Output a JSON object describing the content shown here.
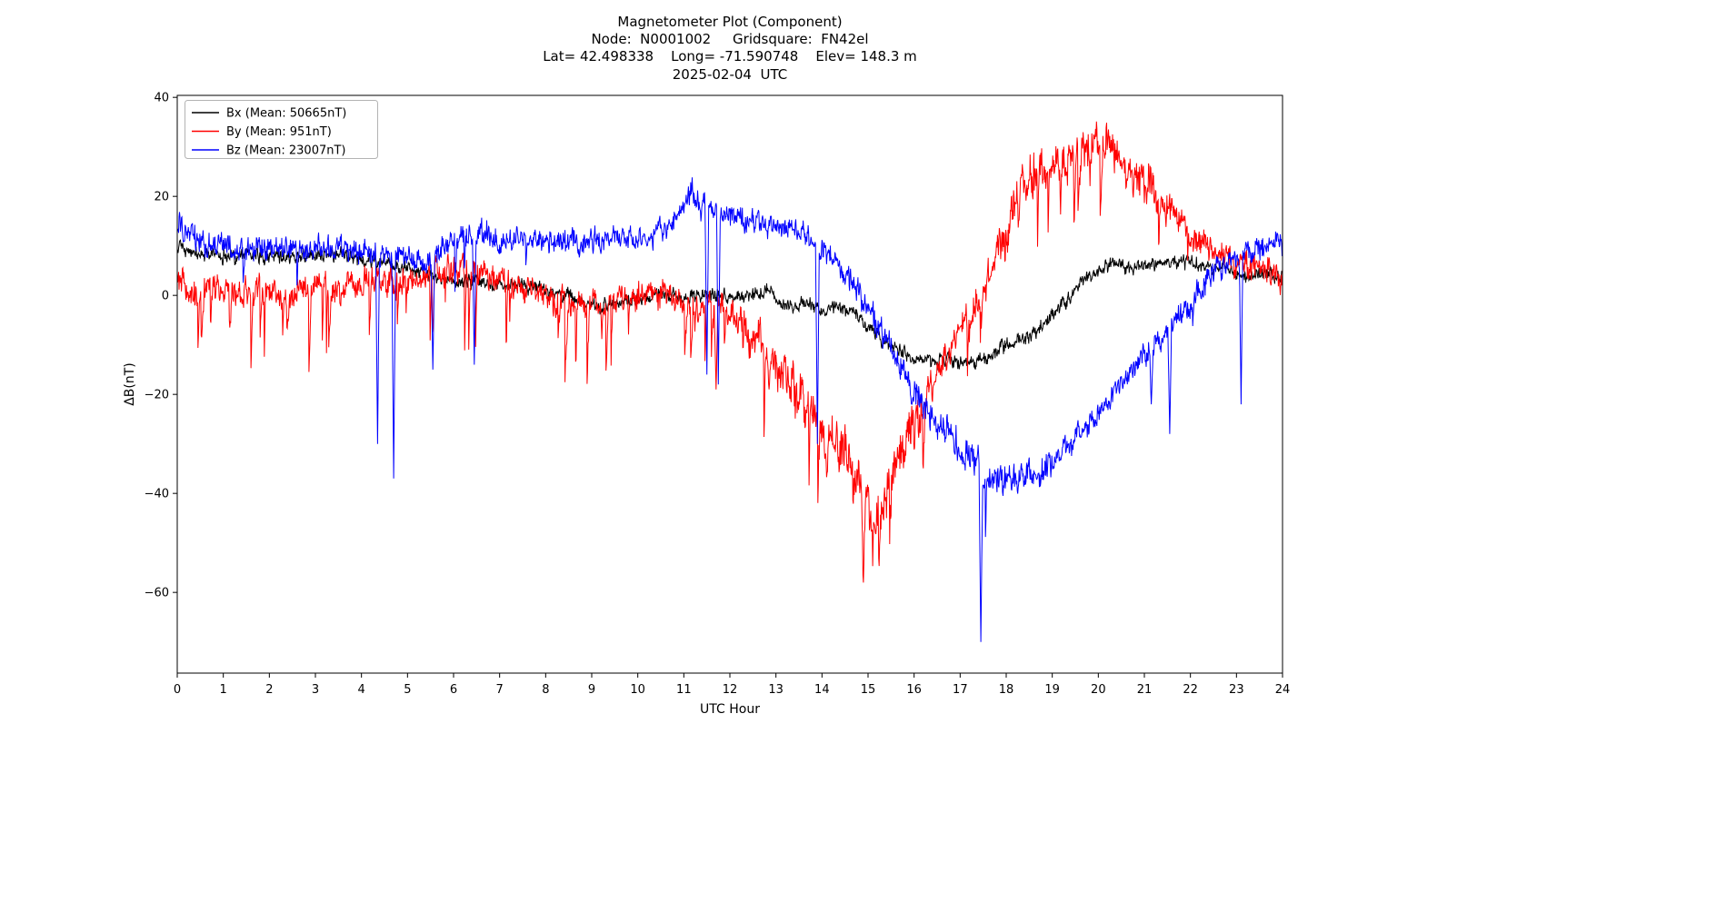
{
  "chart_data": {
    "type": "line",
    "title_lines": [
      "Magnetometer Plot (Component)",
      "Node:  N0001002     Gridsquare:  FN42el",
      "Lat= 42.498338    Long= -71.590748    Elev= 148.3 m",
      "2025-02-04  UTC"
    ],
    "xlabel": "UTC Hour",
    "ylabel": "ΔB(nT)",
    "xlim": [
      0,
      24
    ],
    "ylim": [
      -76.3,
      40.4
    ],
    "x_ticks": [
      0,
      1,
      2,
      3,
      4,
      5,
      6,
      7,
      8,
      9,
      10,
      11,
      12,
      13,
      14,
      15,
      16,
      17,
      18,
      19,
      20,
      21,
      22,
      23,
      24
    ],
    "y_ticks": [
      {
        "v": 40,
        "label": "40"
      },
      {
        "v": 20,
        "label": "20"
      },
      {
        "v": 0,
        "label": "0"
      },
      {
        "v": -20,
        "label": "−20"
      },
      {
        "v": -40,
        "label": "−40"
      },
      {
        "v": -60,
        "label": "−60"
      }
    ],
    "grid": false,
    "legend_position": "upper-left",
    "background": "#ffffff",
    "series": [
      {
        "name": "Bx",
        "label": "Bx (Mean: 50665nT)",
        "color": "#000000",
        "seed": 11,
        "noise_amp": 1.0,
        "noise_regions": [],
        "spike_regions": [],
        "spikes": [],
        "keypoints": [
          [
            0,
            10
          ],
          [
            0.5,
            8.5
          ],
          [
            1,
            8
          ],
          [
            2,
            8
          ],
          [
            3,
            8
          ],
          [
            3.5,
            8.5
          ],
          [
            4,
            7
          ],
          [
            4.5,
            7
          ],
          [
            5,
            5
          ],
          [
            5.5,
            4
          ],
          [
            6,
            2.5
          ],
          [
            6.5,
            3
          ],
          [
            7,
            2
          ],
          [
            7.5,
            2.5
          ],
          [
            8,
            1
          ],
          [
            8.5,
            0
          ],
          [
            9,
            -1.5
          ],
          [
            9.5,
            -2
          ],
          [
            10,
            -0.5
          ],
          [
            10.5,
            0
          ],
          [
            11,
            0
          ],
          [
            11.5,
            0.5
          ],
          [
            12,
            -0.5
          ],
          [
            12.5,
            0
          ],
          [
            12.8,
            1.5
          ],
          [
            13,
            -1
          ],
          [
            13.3,
            -2.5
          ],
          [
            13.7,
            -2
          ],
          [
            14,
            -2.5
          ],
          [
            14.3,
            -2
          ],
          [
            14.6,
            -3
          ],
          [
            15,
            -6
          ],
          [
            15.3,
            -9
          ],
          [
            15.7,
            -11
          ],
          [
            16,
            -13
          ],
          [
            16.3,
            -13.5
          ],
          [
            16.7,
            -13
          ],
          [
            17,
            -13.5
          ],
          [
            17.3,
            -14
          ],
          [
            17.6,
            -13
          ],
          [
            18,
            -10
          ],
          [
            18.3,
            -9
          ],
          [
            18.7,
            -7
          ],
          [
            19,
            -4
          ],
          [
            19.3,
            -1
          ],
          [
            19.6,
            3
          ],
          [
            20,
            5
          ],
          [
            20.3,
            7
          ],
          [
            20.6,
            5.5
          ],
          [
            21,
            6
          ],
          [
            21.3,
            6.5
          ],
          [
            21.6,
            7
          ],
          [
            22,
            7
          ],
          [
            22.3,
            6
          ],
          [
            22.7,
            5.5
          ],
          [
            23,
            4.5
          ],
          [
            23.3,
            4
          ],
          [
            23.7,
            4.5
          ],
          [
            24,
            4
          ]
        ]
      },
      {
        "name": "By",
        "label": "By (Mean: 951nT)",
        "color": "#ff0000",
        "seed": 23,
        "noise_amp": 2.1,
        "noise_regions": [
          {
            "from": 12.2,
            "to": 16.3,
            "amp": 3.5
          },
          {
            "from": 17,
            "to": 21.5,
            "amp": 3.0
          }
        ],
        "spike_regions": [
          {
            "from": 0,
            "to": 11.2,
            "prob": 0.035,
            "min": 4,
            "max": 16
          },
          {
            "from": 11.2,
            "to": 16.2,
            "prob": 0.05,
            "min": 4,
            "max": 14
          },
          {
            "from": 17,
            "to": 22,
            "prob": 0.03,
            "min": 4,
            "max": 13
          }
        ],
        "spikes": [
          [
            11.7,
            -19
          ],
          [
            12.85,
            -19
          ],
          [
            14.9,
            -58
          ]
        ],
        "keypoints": [
          [
            0,
            4
          ],
          [
            0.3,
            0
          ],
          [
            0.7,
            2
          ],
          [
            1,
            1
          ],
          [
            1.5,
            0
          ],
          [
            2,
            1
          ],
          [
            2.5,
            0
          ],
          [
            3,
            2
          ],
          [
            3.5,
            1
          ],
          [
            4,
            3
          ],
          [
            4.5,
            3
          ],
          [
            5,
            2
          ],
          [
            5.5,
            4
          ],
          [
            6,
            6
          ],
          [
            6.3,
            5
          ],
          [
            6.7,
            4
          ],
          [
            7,
            3
          ],
          [
            7.5,
            2
          ],
          [
            8,
            0
          ],
          [
            8.5,
            -1
          ],
          [
            9,
            -3
          ],
          [
            9.5,
            -2
          ],
          [
            10,
            0
          ],
          [
            10.3,
            1
          ],
          [
            10.7,
            0
          ],
          [
            11,
            -1
          ],
          [
            11.3,
            -3
          ],
          [
            11.6,
            -2
          ],
          [
            12,
            -4
          ],
          [
            12.3,
            -6
          ],
          [
            12.6,
            -8
          ],
          [
            13,
            -13
          ],
          [
            13.3,
            -17
          ],
          [
            13.6,
            -22
          ],
          [
            14,
            -28
          ],
          [
            14.3,
            -30
          ],
          [
            14.6,
            -33
          ],
          [
            15,
            -42
          ],
          [
            15.2,
            -46
          ],
          [
            15.4,
            -40
          ],
          [
            15.6,
            -33
          ],
          [
            16,
            -26
          ],
          [
            16.3,
            -20
          ],
          [
            16.6,
            -14
          ],
          [
            17,
            -7
          ],
          [
            17.3,
            -2
          ],
          [
            17.6,
            4
          ],
          [
            18,
            14
          ],
          [
            18.3,
            20
          ],
          [
            18.6,
            24
          ],
          [
            19,
            26
          ],
          [
            19.3,
            27
          ],
          [
            19.6,
            28
          ],
          [
            20,
            31
          ],
          [
            20.2,
            32
          ],
          [
            20.5,
            27
          ],
          [
            20.8,
            24
          ],
          [
            21,
            23
          ],
          [
            21.3,
            20
          ],
          [
            21.6,
            17
          ],
          [
            22,
            12
          ],
          [
            22.3,
            10
          ],
          [
            22.7,
            8
          ],
          [
            23,
            6
          ],
          [
            23.3,
            6
          ],
          [
            23.7,
            5
          ],
          [
            24,
            2
          ]
        ]
      },
      {
        "name": "Bz",
        "label": "Bz (Mean: 23007nT)",
        "color": "#0000ff",
        "seed": 37,
        "noise_amp": 1.7,
        "noise_regions": [
          {
            "from": 14.5,
            "to": 19,
            "amp": 2.2
          }
        ],
        "spike_regions": [
          {
            "from": 0,
            "to": 24,
            "prob": 0.004,
            "min": 3,
            "max": 9
          }
        ],
        "spikes": [
          [
            4.35,
            -30
          ],
          [
            4.7,
            -37
          ],
          [
            5.55,
            -15
          ],
          [
            6.45,
            -14
          ],
          [
            11.5,
            -16
          ],
          [
            11.75,
            -18
          ],
          [
            13.9,
            -30
          ],
          [
            15.95,
            -22
          ],
          [
            17.45,
            -70
          ],
          [
            21.15,
            -22
          ],
          [
            21.55,
            -28
          ],
          [
            23.1,
            -22
          ]
        ],
        "keypoints": [
          [
            0,
            14
          ],
          [
            0.3,
            12
          ],
          [
            0.7,
            10
          ],
          [
            1,
            10
          ],
          [
            1.5,
            9
          ],
          [
            2,
            9.5
          ],
          [
            2.5,
            9
          ],
          [
            3,
            9.5
          ],
          [
            3.5,
            10
          ],
          [
            4,
            9
          ],
          [
            4.5,
            8
          ],
          [
            5,
            8
          ],
          [
            5.3,
            7
          ],
          [
            5.6,
            8
          ],
          [
            6,
            11
          ],
          [
            6.3,
            12
          ],
          [
            6.6,
            13
          ],
          [
            7,
            11
          ],
          [
            7.3,
            10.5
          ],
          [
            7.7,
            11
          ],
          [
            8,
            11
          ],
          [
            8.5,
            10.5
          ],
          [
            9,
            11
          ],
          [
            9.5,
            11.5
          ],
          [
            10,
            11
          ],
          [
            10.3,
            12
          ],
          [
            10.7,
            14
          ],
          [
            11,
            18
          ],
          [
            11.2,
            20
          ],
          [
            11.5,
            18
          ],
          [
            11.8,
            17
          ],
          [
            12,
            16
          ],
          [
            12.3,
            15.5
          ],
          [
            12.6,
            15
          ],
          [
            13,
            14
          ],
          [
            13.3,
            13
          ],
          [
            13.6,
            12
          ],
          [
            14,
            9
          ],
          [
            14.3,
            6
          ],
          [
            14.6,
            3
          ],
          [
            15,
            -3
          ],
          [
            15.3,
            -8
          ],
          [
            15.6,
            -13
          ],
          [
            16,
            -19
          ],
          [
            16.3,
            -23
          ],
          [
            16.6,
            -27
          ],
          [
            17,
            -31
          ],
          [
            17.3,
            -34
          ],
          [
            17.6,
            -37
          ],
          [
            18,
            -38
          ],
          [
            18.3,
            -37
          ],
          [
            18.6,
            -36
          ],
          [
            19,
            -34
          ],
          [
            19.3,
            -31
          ],
          [
            19.6,
            -28
          ],
          [
            20,
            -24
          ],
          [
            20.3,
            -20
          ],
          [
            20.6,
            -16
          ],
          [
            21,
            -12
          ],
          [
            21.3,
            -9
          ],
          [
            21.6,
            -6
          ],
          [
            22,
            -2
          ],
          [
            22.3,
            2
          ],
          [
            22.6,
            6
          ],
          [
            23,
            8
          ],
          [
            23.3,
            9
          ],
          [
            23.7,
            10
          ],
          [
            24,
            11
          ]
        ]
      }
    ]
  }
}
